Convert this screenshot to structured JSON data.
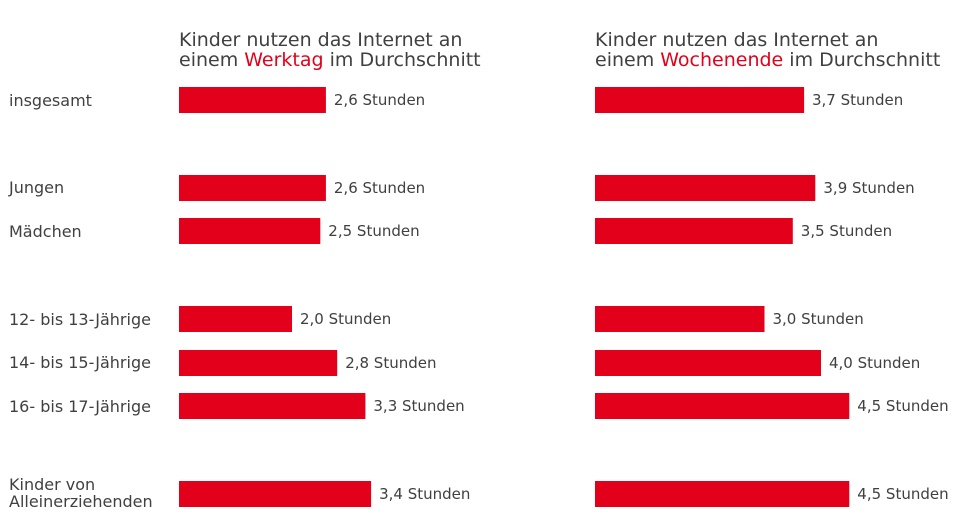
{
  "chart_data": {
    "type": "bar",
    "orientation": "horizontal",
    "unit": "Stunden",
    "categories": [
      "insgesamt",
      "Jungen",
      "Mädchen",
      "12- bis 13-Jährige",
      "14- bis 15-Jährige",
      "16- bis 17-Jährige",
      "Kinder von Alleinerziehenden"
    ],
    "category_lines": [
      [
        "insgesamt"
      ],
      [
        "Jungen"
      ],
      [
        "Mädchen"
      ],
      [
        "12- bis 13-Jährige"
      ],
      [
        "14- bis 15-Jährige"
      ],
      [
        "16- bis 17-Jährige"
      ],
      [
        "Kinder von",
        "Alleinerziehenden"
      ]
    ],
    "series": [
      {
        "name": "Werktag",
        "title_line1": "Kinder nutzen das Internet an",
        "title_prefix": "einem ",
        "title_highlight": "Werktag",
        "title_suffix": " im Durchschnitt",
        "values": [
          2.6,
          2.6,
          2.5,
          2.0,
          2.8,
          3.3,
          3.4
        ],
        "labels": [
          "2,6 Stunden",
          "2,6 Stunden",
          "2,5 Stunden",
          "2,0 Stunden",
          "2,8 Stunden",
          "3,3 Stunden",
          "3,4 Stunden"
        ]
      },
      {
        "name": "Wochenende",
        "title_line1": "Kinder nutzen das Internet an",
        "title_prefix": "einem ",
        "title_highlight": "Wochenende",
        "title_suffix": " im Durchschnitt",
        "values": [
          3.7,
          3.9,
          3.5,
          3.0,
          4.0,
          4.5,
          4.5
        ],
        "labels": [
          "3,7 Stunden",
          "3,9 Stunden",
          "3,5 Stunden",
          "3,0 Stunden",
          "4,0 Stunden",
          "4,5 Stunden",
          "4,5 Stunden"
        ]
      }
    ],
    "xlim": [
      0,
      4.5
    ],
    "grid": false,
    "legend": "none"
  },
  "colors": {
    "bar": "#e2001a",
    "highlight_text": "#e2001a",
    "text": "#404040"
  }
}
